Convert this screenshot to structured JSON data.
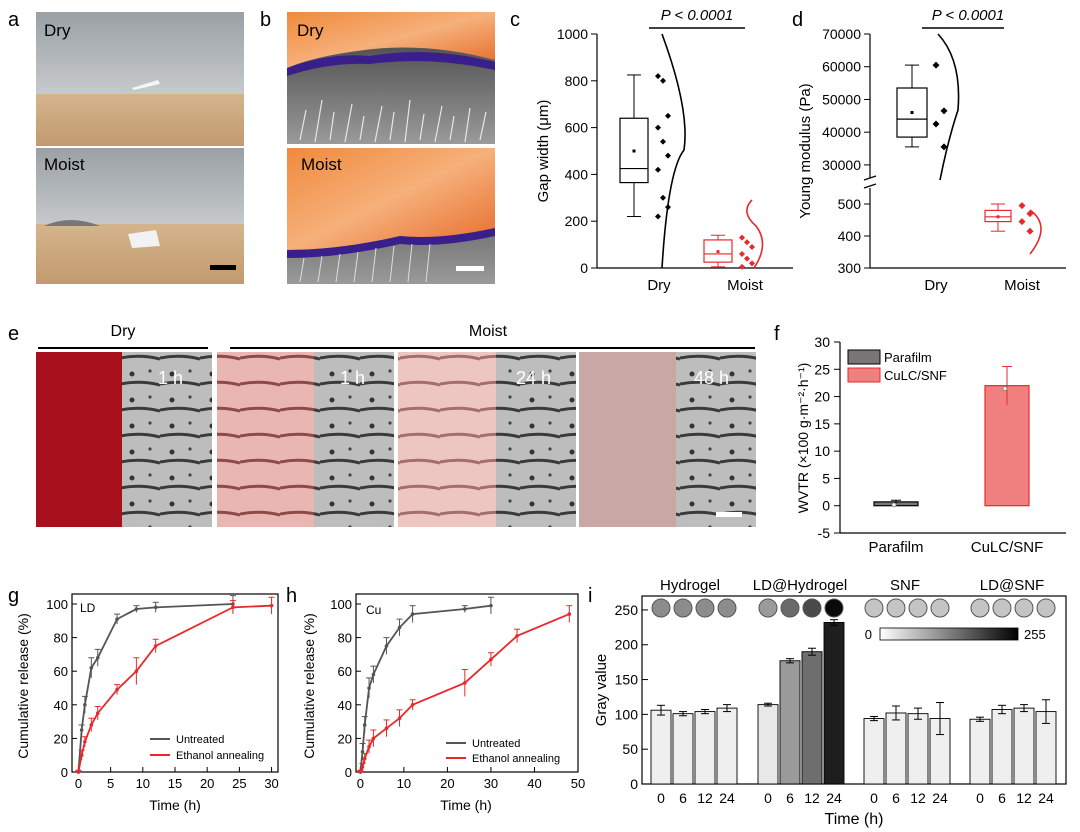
{
  "panel_labels": [
    "a",
    "b",
    "c",
    "d",
    "e",
    "f",
    "g",
    "h",
    "i"
  ],
  "photos": {
    "a_top": "Dry",
    "a_bottom": "Moist",
    "b_top": "Dry",
    "b_bottom": "Moist",
    "e_dry_header": "Dry",
    "e_moist_header": "Moist",
    "e_times": [
      "1 h",
      "1 h",
      "24 h",
      "48 h"
    ]
  },
  "colors": {
    "dry": "#000000",
    "moist": "#e8282b",
    "gray_bar": "#777777",
    "red_bar": "#f08080"
  },
  "chart_data": [
    {
      "id": "c",
      "type": "box",
      "ylabel": "Gap width (μm)",
      "ylim": [
        0,
        1000
      ],
      "yticks": [
        0,
        200,
        400,
        600,
        800,
        1000
      ],
      "categories": [
        "Dry",
        "Moist"
      ],
      "annotation": "P < 0.0001",
      "boxes": [
        {
          "name": "Dry",
          "min": 220,
          "q1": 365,
          "median": 425,
          "q3": 640,
          "max": 825,
          "mean": 500,
          "points": [
            820,
            800,
            650,
            600,
            540,
            480,
            420,
            300,
            260,
            220
          ]
        },
        {
          "name": "Moist",
          "min": 5,
          "q1": 25,
          "median": 60,
          "q3": 120,
          "max": 140,
          "mean": 70,
          "points": [
            130,
            110,
            90,
            60,
            40,
            20,
            5
          ]
        }
      ]
    },
    {
      "id": "d",
      "type": "box",
      "ylabel": "Young modulus (Pa)",
      "ylim": [
        300,
        70000
      ],
      "yticks_lower": [
        300,
        400,
        500
      ],
      "yticks_upper": [
        30000,
        40000,
        50000,
        60000,
        70000
      ],
      "axis_break": [
        550,
        26000
      ],
      "categories": [
        "Dry",
        "Moist"
      ],
      "annotation": "P < 0.0001",
      "boxes": [
        {
          "name": "Dry",
          "min": 35500,
          "q1": 38500,
          "median": 44000,
          "q3": 53500,
          "max": 60500,
          "mean": 46000,
          "points": [
            60500,
            46500,
            42500,
            35500
          ]
        },
        {
          "name": "Moist",
          "min": 415,
          "q1": 445,
          "median": 460,
          "q3": 480,
          "max": 500,
          "mean": 460,
          "points": [
            495,
            470,
            445,
            415
          ]
        }
      ]
    },
    {
      "id": "f",
      "type": "bar",
      "ylabel": "WVTR (×100 g·m⁻²·h⁻¹)",
      "ylim": [
        -5,
        30
      ],
      "yticks": [
        -5,
        0,
        5,
        10,
        15,
        20,
        25,
        30
      ],
      "categories": [
        "Parafilm",
        "CuLC/SNF"
      ],
      "values": [
        0.7,
        22
      ],
      "errors": [
        0.3,
        3.5
      ],
      "legend": [
        "Parafilm",
        "CuLC/SNF"
      ]
    },
    {
      "id": "g",
      "type": "line",
      "title": "LD",
      "xlabel": "Time (h)",
      "ylabel": "Cumulative release (%)",
      "xlim": [
        -1,
        31
      ],
      "ylim": [
        0,
        100
      ],
      "xticks": [
        0,
        5,
        10,
        15,
        20,
        25,
        30
      ],
      "yticks": [
        0,
        20,
        40,
        60,
        80,
        100
      ],
      "series": [
        {
          "name": "Untreated",
          "x": [
            0,
            0.5,
            1,
            2,
            3,
            6,
            9,
            12,
            24
          ],
          "y": [
            0,
            25,
            40,
            62,
            68,
            91,
            97,
            98,
            100
          ],
          "err": [
            1,
            3,
            5,
            6,
            5,
            3,
            2,
            3,
            5
          ]
        },
        {
          "name": "Ethanol annealing",
          "x": [
            0,
            0.5,
            1,
            2,
            3,
            6,
            9,
            12,
            24,
            30
          ],
          "y": [
            0,
            10,
            18,
            28,
            35,
            49,
            60,
            75,
            98,
            99
          ],
          "err": [
            1,
            3,
            3,
            4,
            4,
            3,
            8,
            4,
            4,
            5
          ]
        }
      ]
    },
    {
      "id": "h",
      "type": "line",
      "title": "Cu",
      "xlabel": "Time (h)",
      "ylabel": "Cumulative release (%)",
      "xlim": [
        -1,
        50
      ],
      "ylim": [
        0,
        100
      ],
      "xticks": [
        0,
        10,
        20,
        30,
        40,
        50
      ],
      "yticks": [
        0,
        20,
        40,
        60,
        80,
        100
      ],
      "series": [
        {
          "name": "Untreated",
          "x": [
            0,
            0.5,
            1,
            2,
            3,
            6,
            9,
            12,
            24,
            30
          ],
          "y": [
            0,
            12,
            28,
            50,
            58,
            75,
            86,
            94,
            97,
            99
          ],
          "err": [
            1,
            5,
            5,
            6,
            5,
            5,
            5,
            5,
            2,
            5
          ]
        },
        {
          "name": "Ethanol annealing",
          "x": [
            0,
            0.5,
            1,
            2,
            3,
            6,
            9,
            12,
            24,
            30,
            36,
            48
          ],
          "y": [
            0,
            3,
            8,
            15,
            20,
            26,
            32,
            40,
            53,
            67,
            81,
            94
          ],
          "err": [
            1,
            2,
            3,
            4,
            5,
            5,
            5,
            3,
            8,
            4,
            4,
            5
          ]
        }
      ]
    },
    {
      "id": "i",
      "type": "bar",
      "xlabel": "Time (h)",
      "ylabel": "Gray value",
      "ylim": [
        0,
        270
      ],
      "yticks": [
        0,
        50,
        100,
        150,
        200,
        250
      ],
      "groups": [
        "Hydrogel",
        "LD@Hydrogel",
        "SNF",
        "LD@SNF"
      ],
      "categories": [
        "0",
        "6",
        "12",
        "24"
      ],
      "colorbar": {
        "min": "0",
        "max": "255"
      },
      "series": [
        {
          "name": "Hydrogel",
          "values": [
            106,
            101,
            104,
            109
          ],
          "errors": [
            7,
            3,
            3,
            5
          ]
        },
        {
          "name": "LD@Hydrogel",
          "values": [
            114,
            177,
            190,
            232
          ],
          "errors": [
            2,
            3,
            5,
            4
          ]
        },
        {
          "name": "SNF",
          "values": [
            94,
            102,
            101,
            94
          ],
          "errors": [
            3,
            10,
            8,
            23
          ]
        },
        {
          "name": "LD@SNF",
          "values": [
            93,
            107,
            109,
            104
          ],
          "errors": [
            3,
            6,
            5,
            17
          ]
        }
      ]
    }
  ]
}
